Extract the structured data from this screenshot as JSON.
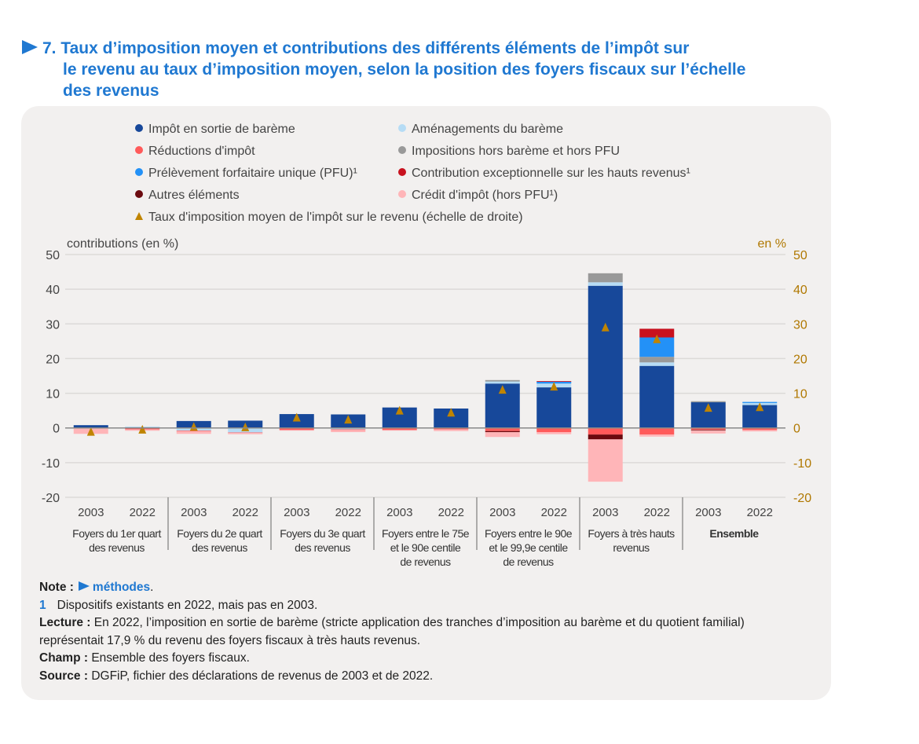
{
  "title": {
    "line1": "7. Taux d’imposition moyen et contributions des différents éléments de l’impôt sur",
    "line2": "le revenu au taux d’imposition moyen, selon la position des foyers fiscaux sur l’échelle",
    "line3": "des revenus"
  },
  "notes": {
    "note_label": "Note :",
    "note_link": "méthodes",
    "note_end": ".",
    "footnote_num": "1",
    "footnote_text": "Dispositifs existants en 2022, mais pas en 2003.",
    "lecture_label": "Lecture :",
    "lecture_text": "En 2022, l’imposition en sortie de barème (stricte application des tranches d’imposition au barème et du quotient familial) représentait 17,9 % du revenu des foyers fiscaux à très hauts revenus.",
    "champ_label": "Champ :",
    "champ_text": "Ensemble des foyers fiscaux.",
    "source_label": "Source :",
    "source_text": "DGFiP, fichier des déclarations de revenus de 2003 et de 2022."
  },
  "chart_data": {
    "type": "bar",
    "stacked": true,
    "ylabel_left": "contributions (en %)",
    "ylabel_right": "en %",
    "ylim": [
      -20,
      50
    ],
    "yticks": [
      -20,
      -10,
      0,
      10,
      20,
      30,
      40,
      50
    ],
    "grid": true,
    "legend_position": "top",
    "groups": [
      {
        "label": [
          "Foyers du 1er quart",
          "des revenus"
        ],
        "bold": false
      },
      {
        "label": [
          "Foyers du 2e quart",
          "des revenus"
        ],
        "bold": false
      },
      {
        "label": [
          "Foyers du 3e quart",
          "des revenus"
        ],
        "bold": false
      },
      {
        "label": [
          "Foyers entre le 75e",
          "et le 90e centile",
          "de revenus"
        ],
        "bold": false
      },
      {
        "label": [
          "Foyers entre le 90e",
          "et le 99,9e centile",
          "de revenus"
        ],
        "bold": false
      },
      {
        "label": [
          "Foyers à très hauts",
          "revenus"
        ],
        "bold": false
      },
      {
        "label": [
          "Ensemble"
        ],
        "bold": true
      }
    ],
    "categories": [
      "2003",
      "2022",
      "2003",
      "2022",
      "2003",
      "2022",
      "2003",
      "2022",
      "2003",
      "2022",
      "2003",
      "2022",
      "2003",
      "2022"
    ],
    "series": [
      {
        "name": "Impôt en sortie de barème",
        "color": "#17489a",
        "values": [
          0.8,
          0.2,
          2.0,
          2.1,
          4.0,
          3.9,
          5.9,
          5.6,
          12.8,
          11.7,
          41.0,
          17.9,
          7.4,
          6.6
        ]
      },
      {
        "name": "Aménagements du barème",
        "color": "#b6dcf5",
        "values": [
          0,
          0.2,
          -0.8,
          -1.3,
          0,
          -0.4,
          0,
          0,
          0.6,
          1.1,
          1.0,
          1.0,
          0,
          0.6
        ]
      },
      {
        "name": "Réductions d'impôt",
        "color": "#ff5a5a",
        "values": [
          -0.2,
          -0.4,
          -0.2,
          -0.1,
          -0.6,
          -0.2,
          -0.6,
          -0.4,
          -0.9,
          -1.2,
          -1.9,
          -1.9,
          -0.5,
          -0.6
        ]
      },
      {
        "name": "Impositions hors barème et hors PFU",
        "color": "#999999",
        "values": [
          0,
          0,
          0,
          0,
          0,
          0,
          0,
          0,
          0.4,
          0,
          2.6,
          1.6,
          0.3,
          0
        ]
      },
      {
        "name": "Prélèvement forfaitaire unique (PFU)¹",
        "color": "#2391f7",
        "values": [
          0,
          0,
          0,
          0,
          0,
          0,
          0,
          0,
          0,
          0.5,
          0,
          5.6,
          0,
          0.3
        ]
      },
      {
        "name": "Contribution exceptionnelle sur les hauts revenus¹",
        "color": "#c8111e",
        "values": [
          0,
          0,
          0,
          0,
          0,
          0,
          0,
          0,
          0,
          0.2,
          0,
          2.5,
          0,
          0
        ]
      },
      {
        "name": "Autres éléments",
        "color": "#6b0a0f",
        "values": [
          0,
          0,
          0,
          0,
          0,
          0,
          0,
          0,
          -0.3,
          0,
          -1.4,
          0,
          -0.2,
          0
        ]
      },
      {
        "name": "Crédit d'impôt (hors PFU¹)",
        "color": "#ffb5b8",
        "values": [
          -1.5,
          -0.4,
          -0.7,
          -0.4,
          -0.1,
          -0.6,
          -0.1,
          -0.5,
          -1.4,
          -0.6,
          -12.2,
          -0.6,
          -0.9,
          -0.4
        ]
      }
    ],
    "rate_series": {
      "name": "Taux d'imposition moyen de l'impôt sur le revenu (échelle de droite)",
      "color": "#c08400",
      "axis": "right",
      "values": [
        -1.1,
        -0.5,
        0.3,
        0.2,
        3.0,
        2.4,
        5.0,
        4.4,
        11.0,
        11.9,
        29.0,
        25.6,
        5.8,
        6.0
      ]
    }
  }
}
